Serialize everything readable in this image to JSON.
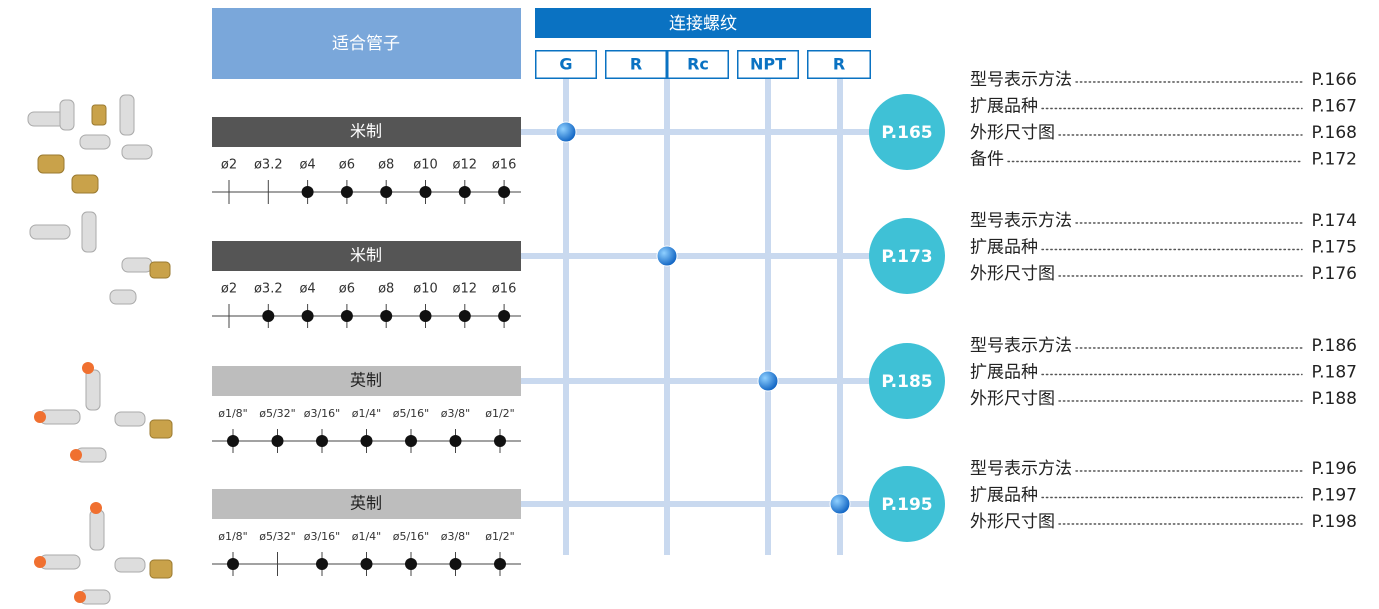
{
  "header": {
    "tube_label": "适合管子",
    "thread_title": "连接螺纹",
    "threads": [
      "G",
      "R",
      "Rc",
      "NPT",
      "R"
    ]
  },
  "rows": [
    {
      "system": "米制",
      "style": "dark",
      "page": "P.165",
      "sizes": [
        "ø2",
        "ø3.2",
        "ø4",
        "ø6",
        "ø8",
        "ø10",
        "ø12",
        "ø16"
      ],
      "available": [
        false,
        false,
        true,
        true,
        true,
        true,
        true,
        true
      ],
      "links": [
        {
          "label": "型号表示方法",
          "page": "P.166"
        },
        {
          "label": "扩展品种",
          "page": "P.167"
        },
        {
          "label": "外形尺寸图",
          "page": "P.168"
        },
        {
          "label": "备件",
          "page": "P.172"
        }
      ]
    },
    {
      "system": "米制",
      "style": "dark",
      "page": "P.173",
      "sizes": [
        "ø2",
        "ø3.2",
        "ø4",
        "ø6",
        "ø8",
        "ø10",
        "ø12",
        "ø16"
      ],
      "available": [
        false,
        true,
        true,
        true,
        true,
        true,
        true,
        true
      ],
      "links": [
        {
          "label": "型号表示方法",
          "page": "P.174"
        },
        {
          "label": "扩展品种",
          "page": "P.175"
        },
        {
          "label": "外形尺寸图",
          "page": "P.176"
        }
      ]
    },
    {
      "system": "英制",
      "style": "light",
      "page": "P.185",
      "sizes": [
        "ø1/8\"",
        "ø5/32\"",
        "ø3/16\"",
        "ø1/4\"",
        "ø5/16\"",
        "ø3/8\"",
        "ø1/2\""
      ],
      "available": [
        true,
        true,
        true,
        true,
        true,
        true,
        true
      ],
      "links": [
        {
          "label": "型号表示方法",
          "page": "P.186"
        },
        {
          "label": "扩展品种",
          "page": "P.187"
        },
        {
          "label": "外形尺寸图",
          "page": "P.188"
        }
      ]
    },
    {
      "system": "英制",
      "style": "light",
      "page": "P.195",
      "sizes": [
        "ø1/8\"",
        "ø5/32\"",
        "ø3/16\"",
        "ø1/4\"",
        "ø5/16\"",
        "ø3/8\"",
        "ø1/2\""
      ],
      "available": [
        true,
        false,
        true,
        true,
        true,
        true,
        true
      ],
      "links": [
        {
          "label": "型号表示方法",
          "page": "P.196"
        },
        {
          "label": "扩展品种",
          "page": "P.197"
        },
        {
          "label": "外形尺寸图",
          "page": "P.198"
        }
      ]
    }
  ]
}
